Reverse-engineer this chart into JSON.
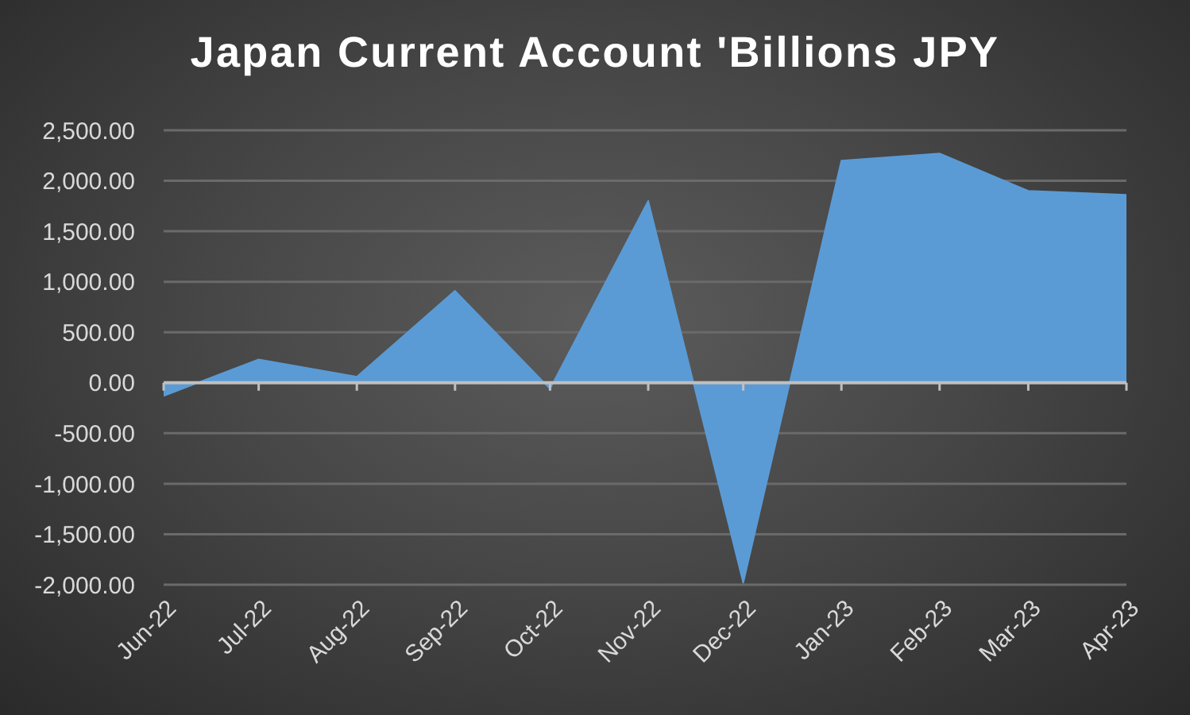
{
  "chart_data": {
    "type": "area",
    "title": "Japan Current Account 'Billions JPY",
    "x": [
      "2022-06",
      "2022-07",
      "2022-08",
      "2022-09",
      "2022-10",
      "2022-11",
      "2022-12",
      "2023-01",
      "2023-02",
      "2023-03",
      "2023-04"
    ],
    "values": [
      -130,
      230,
      60,
      910,
      -60,
      1800,
      -1980,
      2200,
      2270,
      1900,
      1860
    ],
    "color": "#5b9bd5",
    "xlim": [
      "2022-06",
      "2023-04"
    ],
    "xticks": [
      {
        "value": "2022-06",
        "label": "Jun-22"
      },
      {
        "value": "2022-07",
        "label": "Jul-22"
      },
      {
        "value": "2022-08",
        "label": "Aug-22"
      },
      {
        "value": "2022-09",
        "label": "Sep-22"
      },
      {
        "value": "2022-10",
        "label": "Oct-22"
      },
      {
        "value": "2022-11",
        "label": "Nov-22"
      },
      {
        "value": "2022-12",
        "label": "Dec-22"
      },
      {
        "value": "2023-01",
        "label": "Jan-23"
      },
      {
        "value": "2023-02",
        "label": "Feb-23"
      },
      {
        "value": "2023-03",
        "label": "Mar-23"
      },
      {
        "value": "2023-04",
        "label": "Apr-23"
      }
    ],
    "ylim": [
      -2000,
      2500
    ],
    "yticks": [
      {
        "value": -2000,
        "label": "-2,000.00"
      },
      {
        "value": -1500,
        "label": "-1,500.00"
      },
      {
        "value": -1000,
        "label": "-1,000.00"
      },
      {
        "value": -500,
        "label": "-500.00"
      },
      {
        "value": 0,
        "label": "0.00"
      },
      {
        "value": 500,
        "label": "500.00"
      },
      {
        "value": 1000,
        "label": "1,000.00"
      },
      {
        "value": 1500,
        "label": "1,500.00"
      },
      {
        "value": 2000,
        "label": "2,000.00"
      },
      {
        "value": 2500,
        "label": "2,500.00"
      }
    ],
    "grid": "y"
  }
}
